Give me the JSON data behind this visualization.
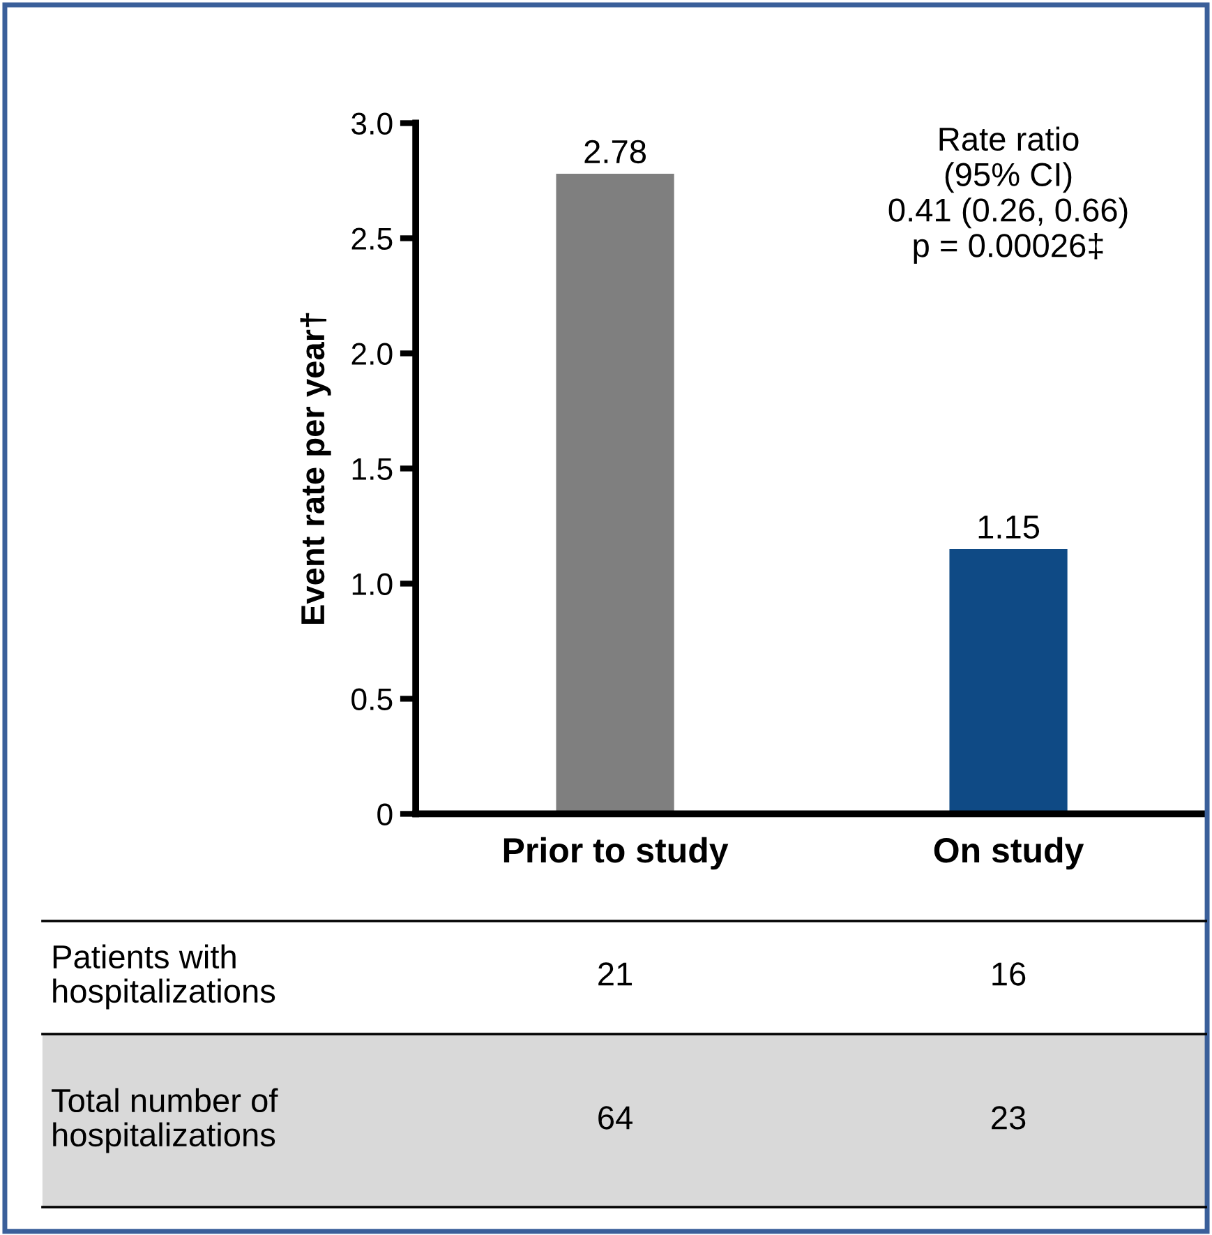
{
  "chart_data": {
    "type": "bar",
    "ylabel": "Event rate per year†",
    "categories": [
      "Prior to study",
      "On study"
    ],
    "values": [
      2.78,
      1.15
    ],
    "colors": [
      "#7f7f7f",
      "#0f4a85"
    ],
    "data_labels": true,
    "ylim": [
      0,
      3
    ],
    "yticks": [
      0,
      0.5,
      {
        "value": 1,
        "label": "1.0"
      },
      1.5,
      {
        "value": 2,
        "label": "2.0"
      },
      2.5,
      {
        "value": 3,
        "label": "3.0"
      }
    ],
    "grid": false,
    "legend": false,
    "annotations": [
      "Rate ratio\n(95% CI)\n0.41 (0.26, 0.66)\np = 0.00026‡",
      "Patients with\nhospitalizations",
      "21",
      "16",
      "Total number of\nhospitalizations",
      "64",
      "23"
    ]
  }
}
